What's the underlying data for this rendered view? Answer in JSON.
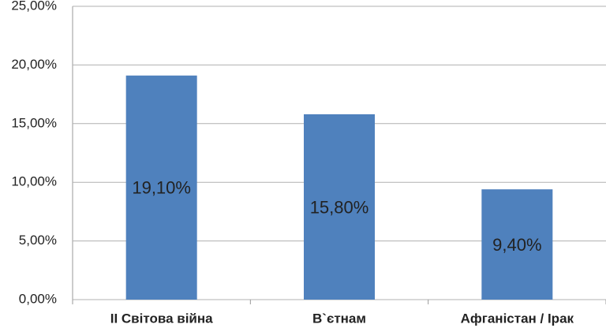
{
  "chart_data": {
    "type": "bar",
    "categories": [
      "II Світова війна",
      "В`єтнам",
      "Афганістан / Ірак"
    ],
    "values": [
      19.1,
      15.8,
      9.4
    ],
    "value_labels": [
      "19,10%",
      "15,80%",
      "9,40%"
    ],
    "color": "#4f81bd",
    "ylim": [
      0,
      25
    ],
    "yticks": [
      {
        "value": 0,
        "label": "0,00%"
      },
      {
        "value": 5,
        "label": "5,00%"
      },
      {
        "value": 10,
        "label": "10,00%"
      },
      {
        "value": 15,
        "label": "15,00%"
      },
      {
        "value": 20,
        "label": "20,00%"
      },
      {
        "value": 25,
        "label": "25,00%"
      }
    ],
    "grid": true
  }
}
